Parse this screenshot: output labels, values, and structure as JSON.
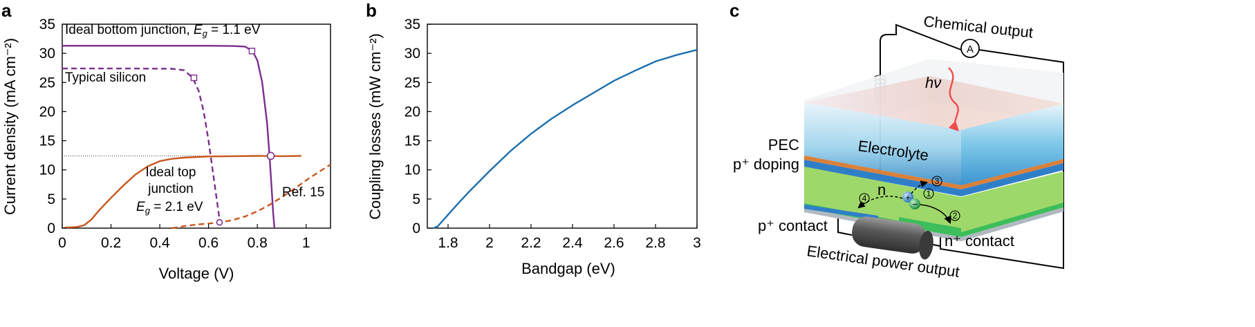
{
  "panels": {
    "a": "a",
    "b": "b",
    "c": "c"
  },
  "colors": {
    "purple": "#7B2D8E",
    "orange": "#C8561C",
    "blue": "#1B6FAE",
    "dotted": "#333333"
  },
  "chart_data": [
    {
      "type": "line",
      "panel": "a",
      "xlabel": "Voltage (V)",
      "ylabel": "Current density (mA cm⁻²)",
      "xlim": [
        0,
        1.1
      ],
      "ylim": [
        0,
        35
      ],
      "xticks": [
        0,
        0.2,
        0.4,
        0.6,
        0.8,
        1
      ],
      "xtick_labels": [
        "0",
        "0.2",
        "0.4",
        "0.6",
        "0.8",
        "1"
      ],
      "yticks": [
        0,
        5,
        10,
        15,
        20,
        25,
        30,
        35
      ],
      "ytick_labels": [
        "0",
        "5",
        "10",
        "15",
        "20",
        "25",
        "30",
        "35"
      ],
      "reference_line": {
        "y": 12.4,
        "style": "dotted"
      },
      "series": [
        {
          "key": "bottom",
          "color": "purple",
          "dash": false,
          "x": [
            0,
            0.3,
            0.6,
            0.7,
            0.75,
            0.78,
            0.8,
            0.82,
            0.84,
            0.85,
            0.86,
            0.865,
            0.87
          ],
          "y": [
            31.3,
            31.3,
            31.3,
            31.25,
            31.15,
            30.4,
            28.8,
            25.0,
            18.0,
            12.4,
            6.0,
            2.5,
            0
          ],
          "marker_points": [
            [
              0.778,
              30.4
            ],
            [
              0.855,
              12.4
            ]
          ]
        },
        {
          "key": "silicon",
          "color": "purple",
          "dash": true,
          "x": [
            0,
            0.3,
            0.45,
            0.5,
            0.535,
            0.56,
            0.58,
            0.6,
            0.615,
            0.63,
            0.64,
            0.65
          ],
          "y": [
            27.4,
            27.4,
            27.35,
            27.1,
            25.8,
            23.5,
            20.0,
            15.0,
            10.5,
            6.0,
            3.0,
            0
          ],
          "marker_points": [
            [
              0.54,
              25.8
            ],
            [
              0.645,
              1.0
            ]
          ]
        },
        {
          "key": "top",
          "color": "orange",
          "dash": false,
          "x": [
            0.01,
            0.06,
            0.09,
            0.12,
            0.15,
            0.2,
            0.25,
            0.3,
            0.35,
            0.4,
            0.45,
            0.5,
            0.6,
            0.7,
            0.8,
            0.9,
            0.98
          ],
          "y": [
            0.1,
            0.2,
            0.5,
            1.5,
            3.0,
            5.2,
            7.3,
            9.2,
            10.6,
            11.5,
            11.9,
            12.1,
            12.3,
            12.35,
            12.4,
            12.35,
            12.4
          ],
          "marker_points": []
        },
        {
          "key": "ref15",
          "color": "orange",
          "dash": true,
          "x": [
            0.45,
            0.5,
            0.55,
            0.6,
            0.65,
            0.7,
            0.75,
            0.8,
            0.85,
            0.9,
            0.95,
            1.0,
            1.05,
            1.1
          ],
          "y": [
            0,
            0.35,
            0.6,
            0.8,
            1.0,
            1.4,
            2.0,
            2.9,
            4.0,
            5.3,
            6.7,
            8.2,
            9.6,
            10.9
          ],
          "marker_points": []
        }
      ],
      "annotations": {
        "bottom_text": "Ideal bottom junction, ",
        "bottom_eg": "E",
        "bottom_sub": "g",
        "bottom_val": " = 1.1 eV",
        "silicon": "Typical silicon",
        "top1": "Ideal top",
        "top2": "junction",
        "top3_eg": "E",
        "top3_sub": "g",
        "top3_val": " = 2.1 eV",
        "ref15": "Ref. 15"
      }
    },
    {
      "type": "line",
      "panel": "b",
      "xlabel": "Bandgap (eV)",
      "ylabel": "Coupling losses (mW cm⁻²)",
      "xlim": [
        1.7,
        3.0
      ],
      "ylim": [
        0,
        35
      ],
      "xticks": [
        1.8,
        2,
        2.2,
        2.4,
        2.6,
        2.8,
        3
      ],
      "xtick_labels": [
        "1.8",
        "2",
        "2.2",
        "2.4",
        "2.6",
        "2.8",
        "3"
      ],
      "yticks": [
        0,
        5,
        10,
        15,
        20,
        25,
        30,
        35
      ],
      "ytick_labels": [
        "0",
        "5",
        "10",
        "15",
        "20",
        "25",
        "30",
        "35"
      ],
      "series": [
        {
          "key": "coupling",
          "color": "blue",
          "dash": false,
          "x": [
            1.73,
            1.75,
            1.8,
            1.85,
            1.9,
            1.95,
            2.0,
            2.1,
            2.2,
            2.3,
            2.4,
            2.5,
            2.6,
            2.7,
            2.8,
            2.9,
            3.0
          ],
          "y": [
            0,
            0.3,
            2.3,
            4.3,
            6.2,
            8.0,
            9.8,
            13.2,
            16.2,
            18.8,
            21.1,
            23.2,
            25.3,
            27.0,
            28.6,
            29.7,
            30.6
          ]
        }
      ]
    }
  ],
  "diagram": {
    "chemical_output": "Chemical output",
    "ammeter": "A",
    "photon": "hν",
    "electrolyte": "Electrolyte",
    "pec": "PEC",
    "p_doping": "p⁺ doping",
    "n_label": "n",
    "p_contact": "p⁺ contact",
    "n_contact": "n⁺ contact",
    "power_output": "Electrical power output",
    "steps": [
      "1",
      "2",
      "3",
      "4"
    ],
    "hole": "+",
    "electron": "−"
  }
}
